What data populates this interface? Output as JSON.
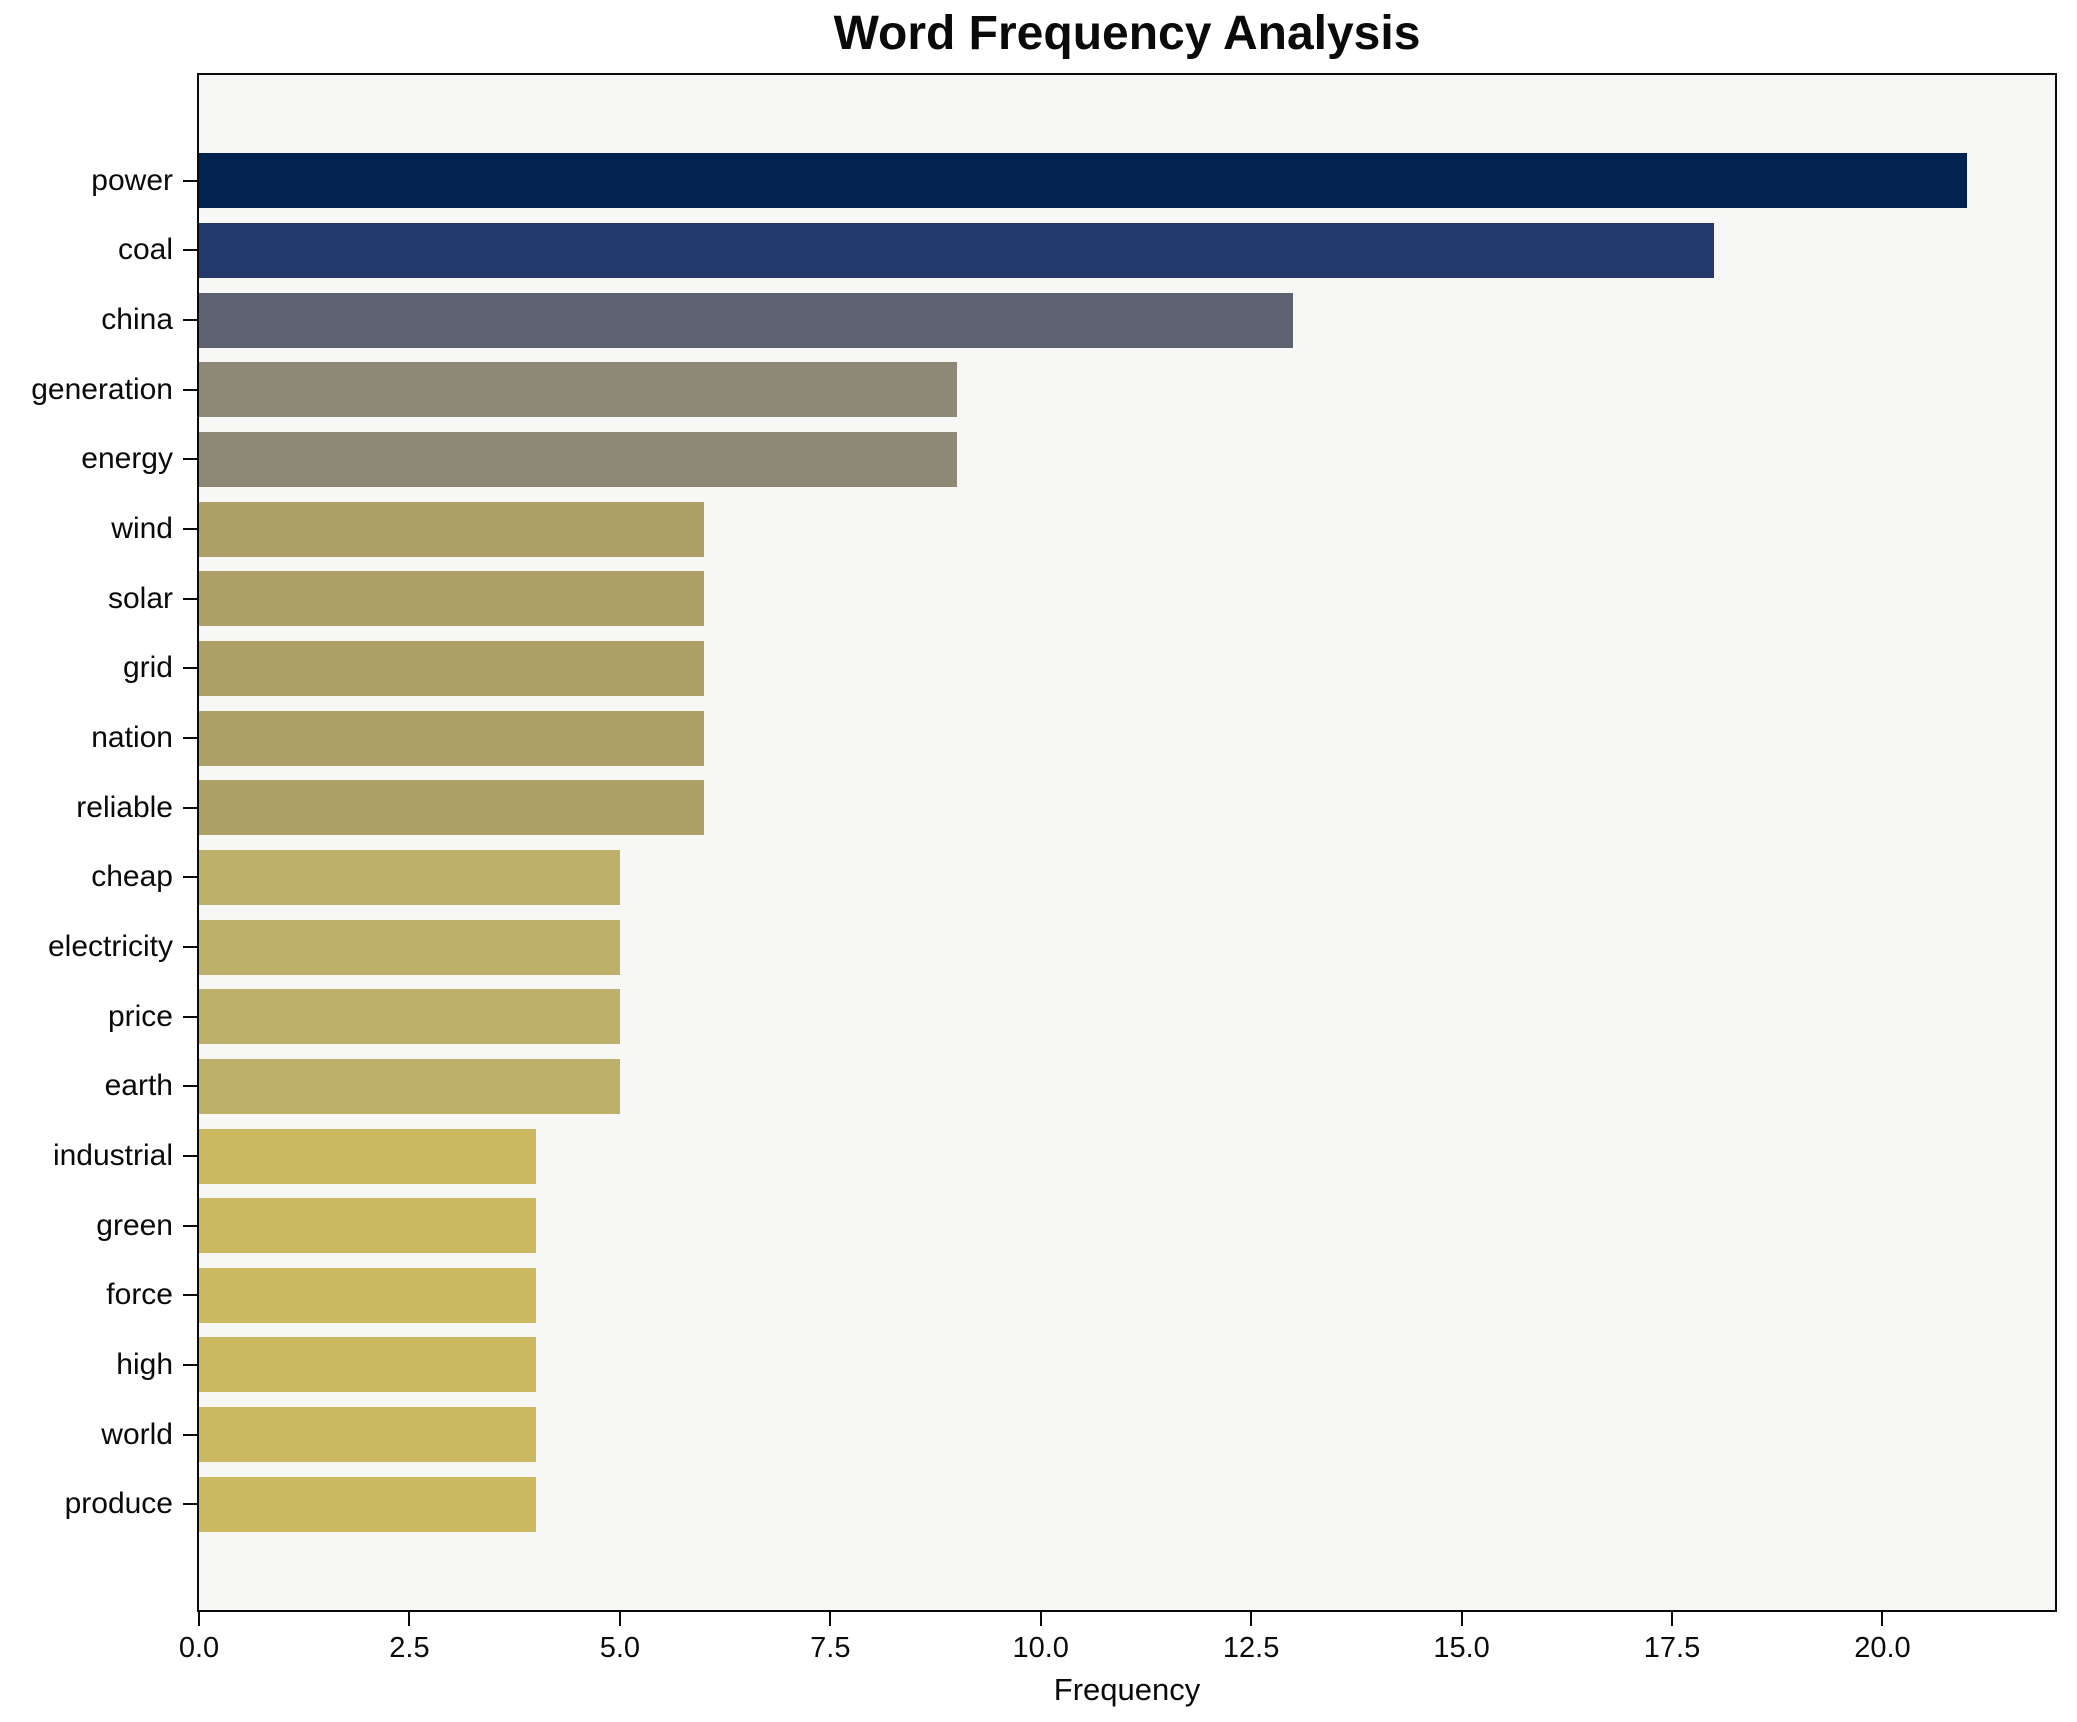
{
  "chart_data": {
    "type": "bar",
    "orientation": "horizontal",
    "title": "Word Frequency Analysis",
    "xlabel": "Frequency",
    "ylabel": "",
    "xlim": [
      0,
      22.05
    ],
    "grid": false,
    "legend_position": "none",
    "plot_background": "#f7f7f5",
    "figure_background": "#ffffff",
    "spine_color": "#0a0a0a",
    "xtick_values": [
      0,
      2.5,
      5,
      7.5,
      10,
      12.5,
      15,
      17.5,
      20
    ],
    "xtick_labels": [
      "0.0",
      "2.5",
      "5.0",
      "7.5",
      "10.0",
      "12.5",
      "15.0",
      "17.5",
      "20.0"
    ],
    "categories": [
      "power",
      "coal",
      "china",
      "generation",
      "energy",
      "wind",
      "solar",
      "grid",
      "nation",
      "reliable",
      "cheap",
      "electricity",
      "price",
      "earth",
      "industrial",
      "green",
      "force",
      "high",
      "world",
      "produce"
    ],
    "values": [
      21,
      18,
      13,
      9,
      9,
      6,
      6,
      6,
      6,
      6,
      5,
      5,
      5,
      5,
      4,
      4,
      4,
      4,
      4,
      4
    ],
    "bar_colors": [
      "#02234f",
      "#23396b",
      "#5e6270",
      "#8e8877",
      "#8e8877",
      "#ada167",
      "#ada167",
      "#ada167",
      "#ada167",
      "#ada167",
      "#bdb06a",
      "#bdb06a",
      "#bdb06a",
      "#bdb06a",
      "#cbb962",
      "#cbb962",
      "#cbb962",
      "#cbb962",
      "#cbb962",
      "#cbb962"
    ]
  }
}
